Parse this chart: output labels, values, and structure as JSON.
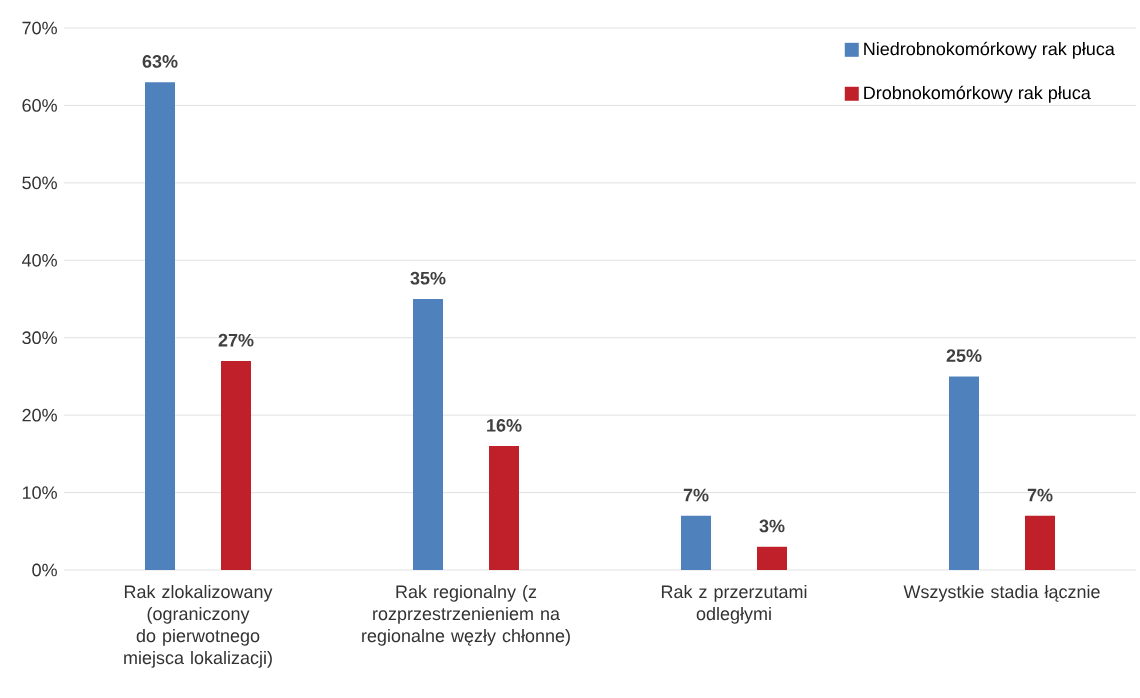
{
  "chart_data": {
    "type": "bar",
    "categories": [
      "Rak zlokalizowany (ograniczony do pierwotnego miejsca lokalizacji)",
      "Rak regionalny (z rozprzestrzenieniem na regionalne węzły chłonne)",
      "Rak z przerzutami odległymi",
      "Wszystkie stadia łącznie"
    ],
    "series": [
      {
        "name": "Niedrobnokomórkowy rak płuca",
        "color": "#4f81bd",
        "values": [
          63,
          35,
          7,
          25
        ],
        "value_labels": [
          "63%",
          "35%",
          "7%",
          "25%"
        ]
      },
      {
        "name": "Drobnokomórkowy rak płuca",
        "color": "#c0202a",
        "values": [
          27,
          16,
          3,
          7
        ],
        "value_labels": [
          "27%",
          "16%",
          "3%",
          "7%"
        ]
      }
    ],
    "ylim": [
      0,
      70
    ],
    "yticks": [
      {
        "value": 0,
        "label": "0%"
      },
      {
        "value": 10,
        "label": "10%"
      },
      {
        "value": 20,
        "label": "20%"
      },
      {
        "value": 30,
        "label": "30%"
      },
      {
        "value": 40,
        "label": "40%"
      },
      {
        "value": 50,
        "label": "50%"
      },
      {
        "value": 60,
        "label": "60%"
      },
      {
        "value": 70,
        "label": "70%"
      }
    ],
    "grid": "y",
    "legend": "top right"
  }
}
